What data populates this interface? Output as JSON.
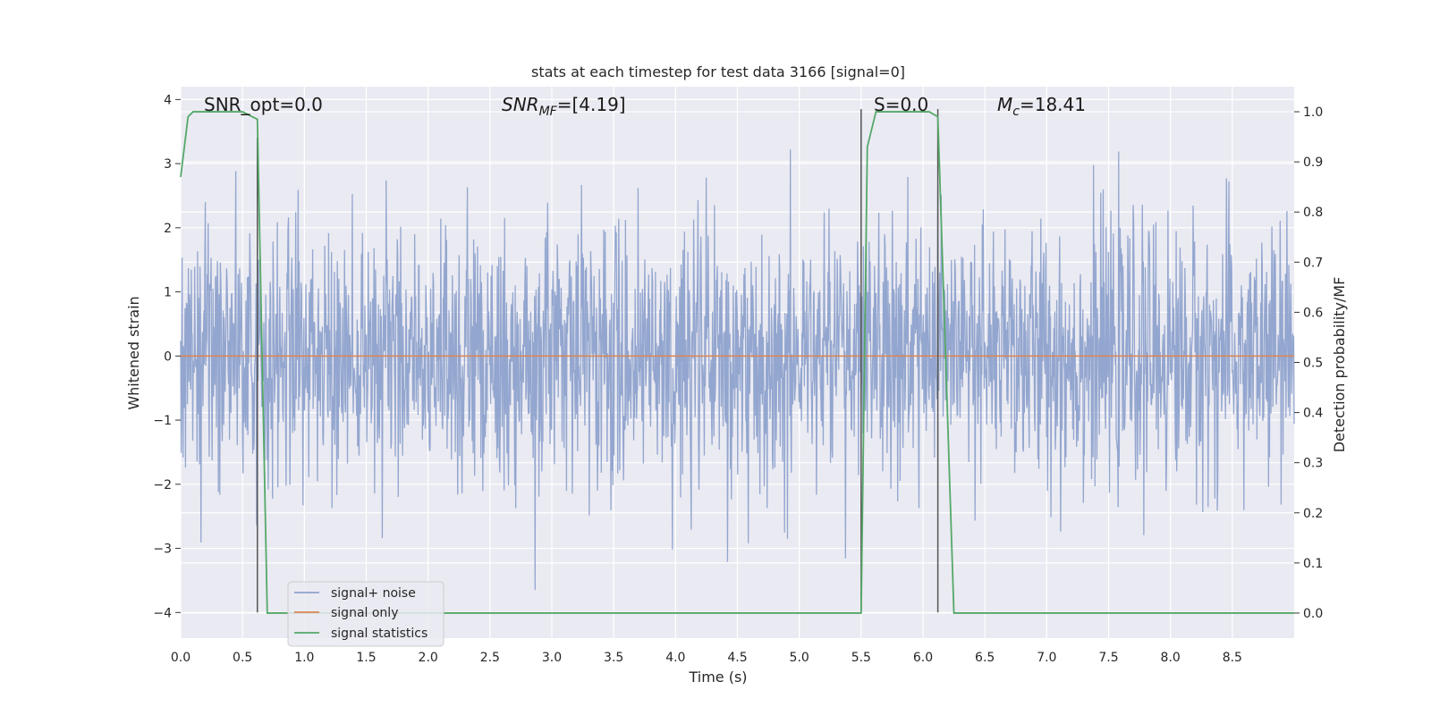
{
  "chart_data": {
    "type": "line",
    "title": "stats at each timestep for test data 3166 [signal=0]",
    "xlabel": "Time (s)",
    "ylabel": "Whitened strain",
    "y2label": "Detection probability/MF",
    "xlim": [
      0.0,
      9.0
    ],
    "ylim": [
      -4.4,
      4.2
    ],
    "y2lim": [
      -0.05,
      1.05
    ],
    "xticks": [
      "0.0",
      "0.5",
      "1.0",
      "1.5",
      "2.0",
      "2.5",
      "3.0",
      "3.5",
      "4.0",
      "4.5",
      "5.0",
      "5.5",
      "6.0",
      "6.5",
      "7.0",
      "7.5",
      "8.0",
      "8.5"
    ],
    "yticks": [
      "4",
      "3",
      "2",
      "1",
      "0",
      "−1",
      "−2",
      "−3",
      "−4"
    ],
    "y2ticks": [
      "1.0",
      "0.9",
      "0.8",
      "0.7",
      "0.6",
      "0.5",
      "0.4",
      "0.3",
      "0.2",
      "0.1",
      "0.0"
    ],
    "grid": true,
    "legend_position": "lower-left",
    "annotations": {
      "snr_opt": "SNR_opt=0.0",
      "snr_mf_prefix": "SNR",
      "snr_mf_sub": "MF",
      "snr_mf_value": "=[4.19]",
      "s_label": "S=0.0",
      "mc_prefix": "M",
      "mc_sub": "c",
      "mc_value": "=18.41"
    },
    "series": [
      {
        "name": "signal+ noise",
        "color": "#8ea2cc",
        "style": "noise",
        "sigma": 1.0,
        "n_samples": 2304
      },
      {
        "name": "signal only",
        "color": "#dd8452",
        "values": [
          0,
          0
        ]
      },
      {
        "name": "signal statistics",
        "color": "#55a868",
        "axis": "right",
        "x": [
          0.0,
          0.06,
          0.1,
          0.2,
          0.5,
          0.58,
          0.62,
          0.7,
          0.78,
          2.9,
          3.0,
          5.5,
          5.55,
          5.62,
          6.05,
          6.12,
          6.25,
          9.0
        ],
        "values": [
          0.87,
          0.99,
          1.0,
          1.0,
          1.0,
          0.99,
          0.985,
          0.0,
          0.0,
          0.0,
          0.0,
          0.0,
          0.93,
          1.0,
          1.0,
          0.99,
          0.0,
          0.0
        ]
      }
    ],
    "markers": {
      "color": "#555555",
      "lines": [
        {
          "x": 0.62,
          "from": -4.0,
          "to": 3.4
        },
        {
          "x": 5.5,
          "from": -4.0,
          "to": 3.85
        },
        {
          "x": 6.12,
          "from": -4.0,
          "to": 3.85
        }
      ]
    },
    "colors": {
      "background": "#eaeaf2",
      "grid": "#ffffff"
    }
  }
}
